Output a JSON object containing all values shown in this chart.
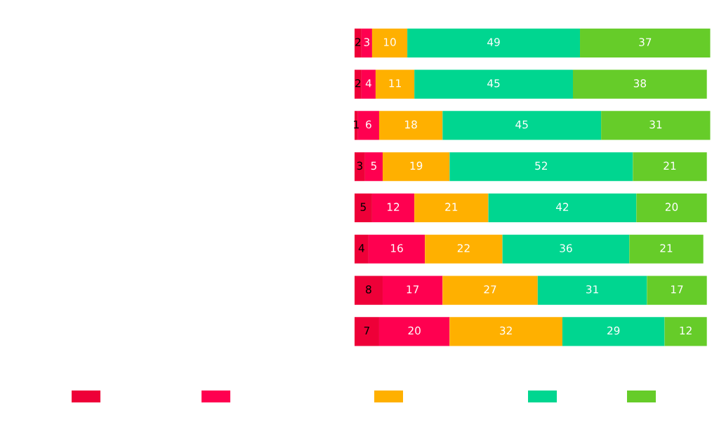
{
  "chart_data": {
    "type": "bar",
    "orientation": "horizontal",
    "stacked": true,
    "data_labels": true,
    "grid": false,
    "categories": [
      null,
      null,
      null,
      null,
      null,
      null,
      null,
      null
    ],
    "series": [
      {
        "color": "#ee0038",
        "values": [
          2,
          2,
          1,
          3,
          5,
          4,
          8,
          7
        ]
      },
      {
        "color": "#ff0050",
        "values": [
          3,
          4,
          6,
          5,
          12,
          16,
          17,
          20
        ]
      },
      {
        "color": "#ffb000",
        "values": [
          10,
          11,
          18,
          19,
          21,
          22,
          27,
          32
        ]
      },
      {
        "color": "#00d690",
        "values": [
          49,
          45,
          45,
          52,
          42,
          36,
          31,
          29
        ]
      },
      {
        "color": "#66cc29",
        "values": [
          37,
          38,
          31,
          21,
          20,
          21,
          17,
          12
        ]
      }
    ]
  }
}
